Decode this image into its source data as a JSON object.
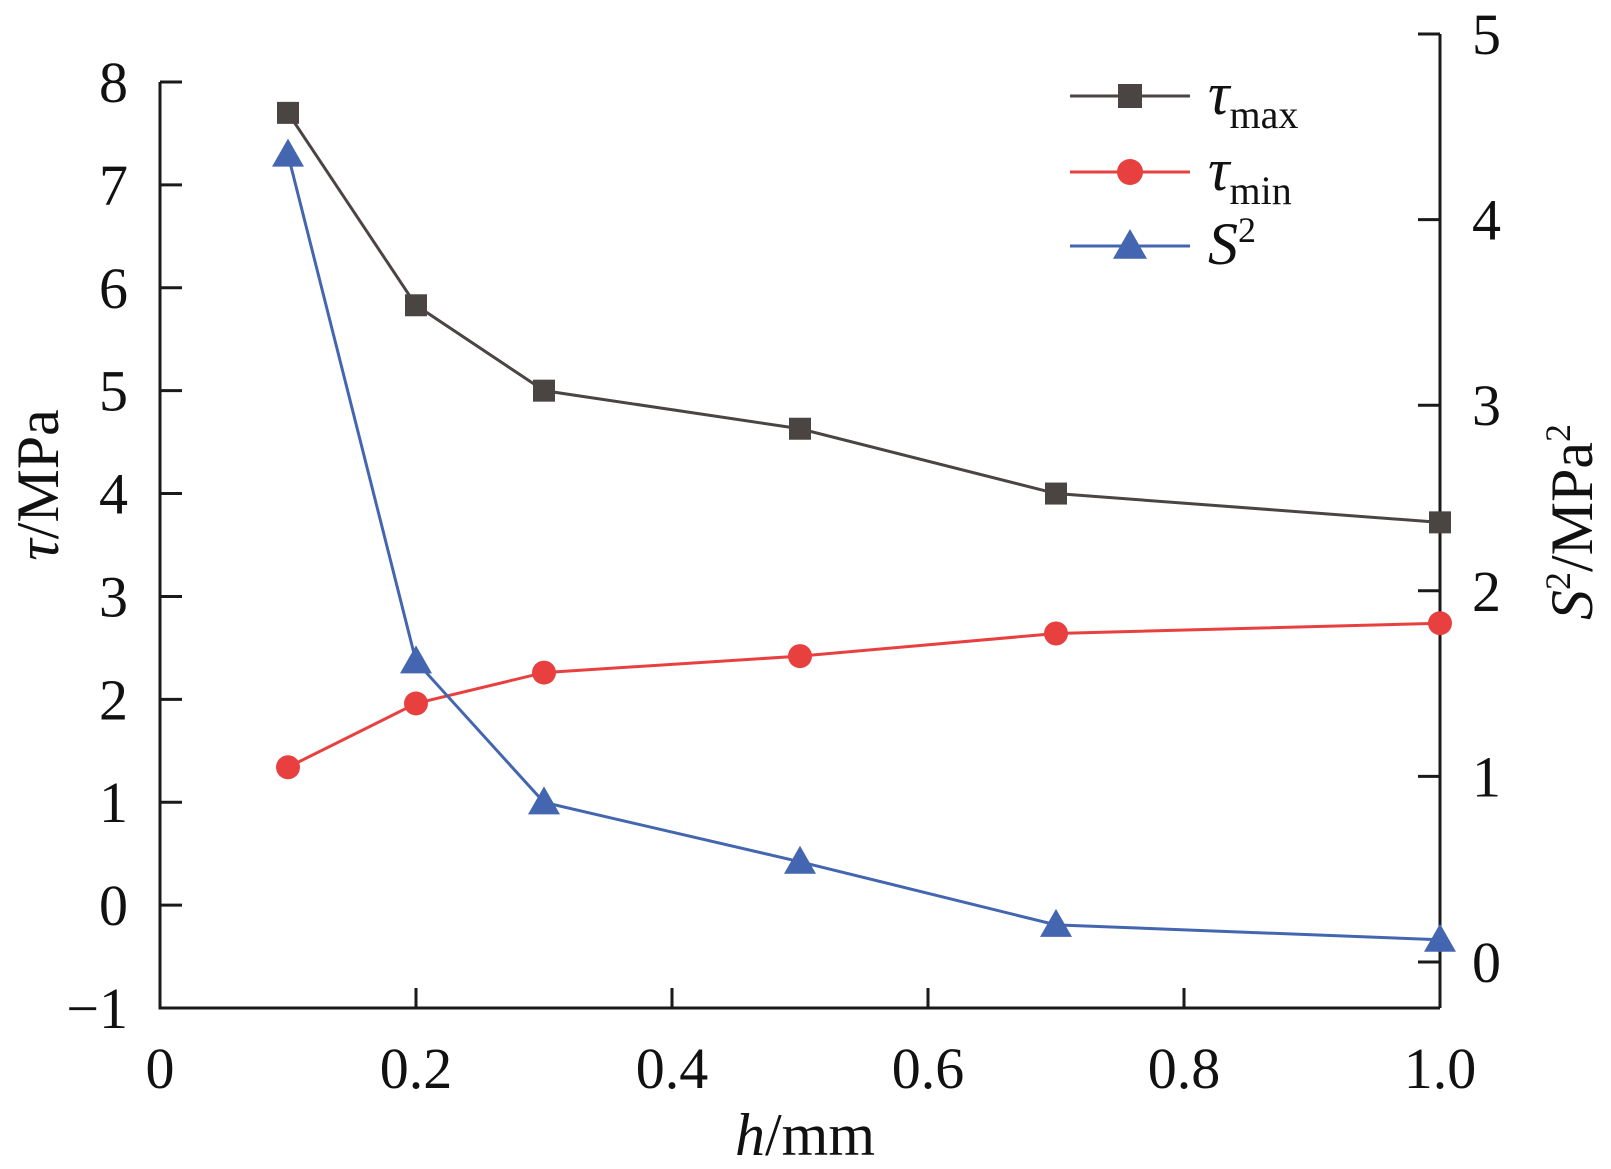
{
  "chart_data": {
    "type": "line",
    "x": [
      0.1,
      0.2,
      0.3,
      0.5,
      0.7,
      1.0
    ],
    "xlabel": {
      "var": "h",
      "unit": "/mm"
    },
    "ylabel_left": {
      "var": "τ",
      "unit": "/MPa"
    },
    "ylabel_right": {
      "var": "S",
      "sup": "2",
      "unit": "/MPa",
      "unit_sup": "2"
    },
    "xlim": [
      0,
      1.0
    ],
    "ylim_left": [
      -1,
      8
    ],
    "ylim_right": [
      -0.25,
      5
    ],
    "x_ticks": [
      {
        "value": 0,
        "label": "0"
      },
      {
        "value": 0.2,
        "label": "0.2"
      },
      {
        "value": 0.4,
        "label": "0.4"
      },
      {
        "value": 0.6,
        "label": "0.6"
      },
      {
        "value": 0.8,
        "label": "0.8"
      },
      {
        "value": 1.0,
        "label": "1.0"
      }
    ],
    "y_left_ticks": [
      {
        "value": -1,
        "label": "−1"
      },
      {
        "value": 0,
        "label": "0"
      },
      {
        "value": 1,
        "label": "1"
      },
      {
        "value": 2,
        "label": "2"
      },
      {
        "value": 3,
        "label": "3"
      },
      {
        "value": 4,
        "label": "4"
      },
      {
        "value": 5,
        "label": "5"
      },
      {
        "value": 6,
        "label": "6"
      },
      {
        "value": 7,
        "label": "7"
      },
      {
        "value": 8,
        "label": "8"
      }
    ],
    "y_right_ticks": [
      {
        "value": 0,
        "label": "0"
      },
      {
        "value": 1,
        "label": "1"
      },
      {
        "value": 2,
        "label": "2"
      },
      {
        "value": 3,
        "label": "3"
      },
      {
        "value": 4,
        "label": "4"
      },
      {
        "value": 5,
        "label": "5"
      }
    ],
    "grid": false,
    "legend_position": "top-right",
    "series": [
      {
        "name": "τ",
        "sub": "max",
        "axis": "left",
        "marker": "square",
        "color": "#4a4543",
        "values": [
          7.7,
          5.83,
          5.0,
          4.63,
          4.0,
          3.72
        ]
      },
      {
        "name": "τ",
        "sub": "min",
        "axis": "left",
        "marker": "circle",
        "color": "#e8403f",
        "values": [
          1.34,
          1.96,
          2.26,
          2.42,
          2.64,
          2.74
        ]
      },
      {
        "name": "S",
        "sup": "2",
        "axis": "right",
        "marker": "triangle",
        "color": "#4466b0",
        "values": [
          4.35,
          1.62,
          0.86,
          0.54,
          0.2,
          0.12
        ]
      }
    ]
  }
}
